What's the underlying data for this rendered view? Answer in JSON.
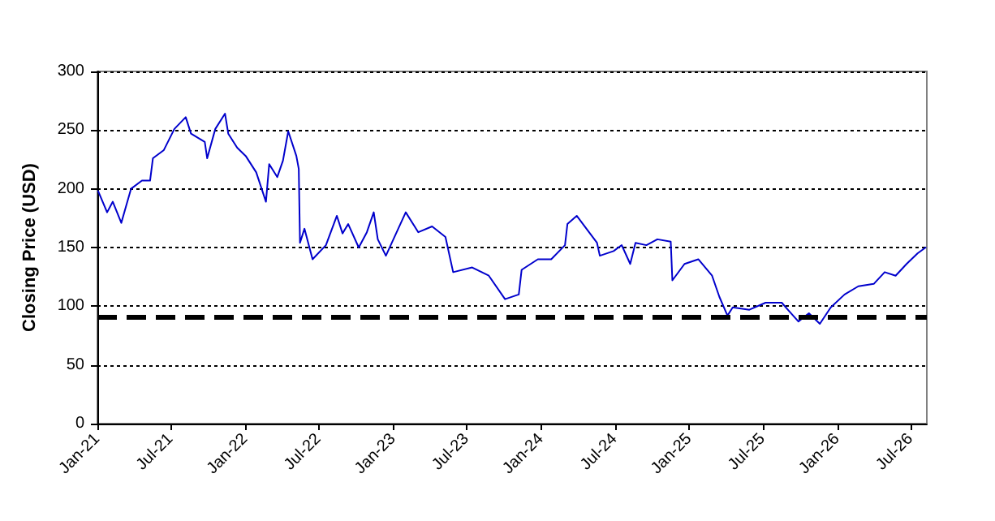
{
  "chart_data": {
    "type": "line",
    "ylabel": "Closing Price (USD)",
    "x": [
      "2021-01-03",
      "2021-01-25",
      "2021-02-08",
      "2021-03-01",
      "2021-03-25",
      "2021-04-21",
      "2021-05-11",
      "2021-05-18",
      "2021-06-14",
      "2021-07-10",
      "2021-08-07",
      "2021-08-20",
      "2021-09-23",
      "2021-09-29",
      "2021-10-19",
      "2021-11-12",
      "2021-11-20",
      "2021-12-12",
      "2022-01-02",
      "2022-01-28",
      "2022-02-21",
      "2022-03-01",
      "2022-03-21",
      "2022-04-04",
      "2022-04-17",
      "2022-05-07",
      "2022-05-13",
      "2022-05-16",
      "2022-05-27",
      "2022-06-16",
      "2022-07-19",
      "2022-08-15",
      "2022-08-29",
      "2022-09-12",
      "2022-10-08",
      "2022-10-28",
      "2022-11-14",
      "2022-11-24",
      "2022-12-14",
      "2023-02-01",
      "2023-03-04",
      "2023-04-07",
      "2023-05-10",
      "2023-05-29",
      "2023-07-15",
      "2023-08-25",
      "2023-10-04",
      "2023-11-07",
      "2023-11-14",
      "2023-12-24",
      "2024-01-26",
      "2024-02-29",
      "2024-03-06",
      "2024-03-29",
      "2024-04-22",
      "2024-05-18",
      "2024-05-25",
      "2024-06-28",
      "2024-07-18",
      "2024-08-08",
      "2024-08-21",
      "2024-09-17",
      "2024-10-14",
      "2024-11-16",
      "2024-11-20",
      "2024-12-20",
      "2025-01-23",
      "2025-02-26",
      "2025-03-16",
      "2025-04-05",
      "2025-04-18",
      "2025-05-29",
      "2025-07-08",
      "2025-08-17",
      "2025-09-01",
      "2025-09-27",
      "2025-10-23",
      "2025-11-19",
      "2025-12-16",
      "2026-01-19",
      "2026-02-22",
      "2026-04-01",
      "2026-04-28",
      "2026-05-25",
      "2026-06-21",
      "2026-07-18",
      "2026-08-07"
    ],
    "series": [
      {
        "color": "#0000cc",
        "values": [
          198,
          180,
          189,
          171,
          200,
          207,
          207,
          226,
          233,
          251,
          261,
          247,
          240,
          226,
          251,
          264,
          247,
          235,
          228,
          214,
          189,
          221,
          210,
          224,
          249,
          228,
          217,
          154,
          166,
          140,
          152,
          177,
          162,
          170,
          150,
          163,
          180,
          157,
          143,
          180,
          163,
          168,
          159,
          129,
          133,
          126,
          106,
          110,
          131,
          140,
          140,
          152,
          170,
          177,
          166,
          154,
          143,
          147,
          152,
          136,
          154,
          152,
          157,
          155,
          122,
          136,
          140,
          126,
          108,
          92,
          99,
          97,
          103,
          103,
          97,
          87,
          94,
          85,
          99,
          110,
          117,
          119,
          129,
          126,
          136,
          145,
          150
        ]
      }
    ],
    "xlim": [
      "2021-01-01",
      "2026-08-10"
    ],
    "xticks": [
      {
        "value": "2021-01-01",
        "label": "Jan-21"
      },
      {
        "value": "2021-07-01",
        "label": "Jul-21"
      },
      {
        "value": "2022-01-01",
        "label": "Jan-22"
      },
      {
        "value": "2022-07-01",
        "label": "Jul-22"
      },
      {
        "value": "2023-01-01",
        "label": "Jan-23"
      },
      {
        "value": "2023-07-01",
        "label": "Jul-23"
      },
      {
        "value": "2024-01-01",
        "label": "Jan-24"
      },
      {
        "value": "2024-07-01",
        "label": "Jul-24"
      },
      {
        "value": "2025-01-01",
        "label": "Jan-25"
      },
      {
        "value": "2025-07-01",
        "label": "Jul-25"
      },
      {
        "value": "2026-01-01",
        "label": "Jan-26"
      },
      {
        "value": "2026-07-01",
        "label": "Jul-26"
      }
    ],
    "ylim": [
      0,
      300
    ],
    "yticks": [
      0,
      50,
      100,
      150,
      200,
      250,
      300
    ],
    "grid": "y",
    "marker": "none",
    "line_style": "solid",
    "ref_lines": [
      {
        "axis": "y",
        "value": 91,
        "color": "#000000",
        "line_style": "dashed"
      }
    ]
  }
}
